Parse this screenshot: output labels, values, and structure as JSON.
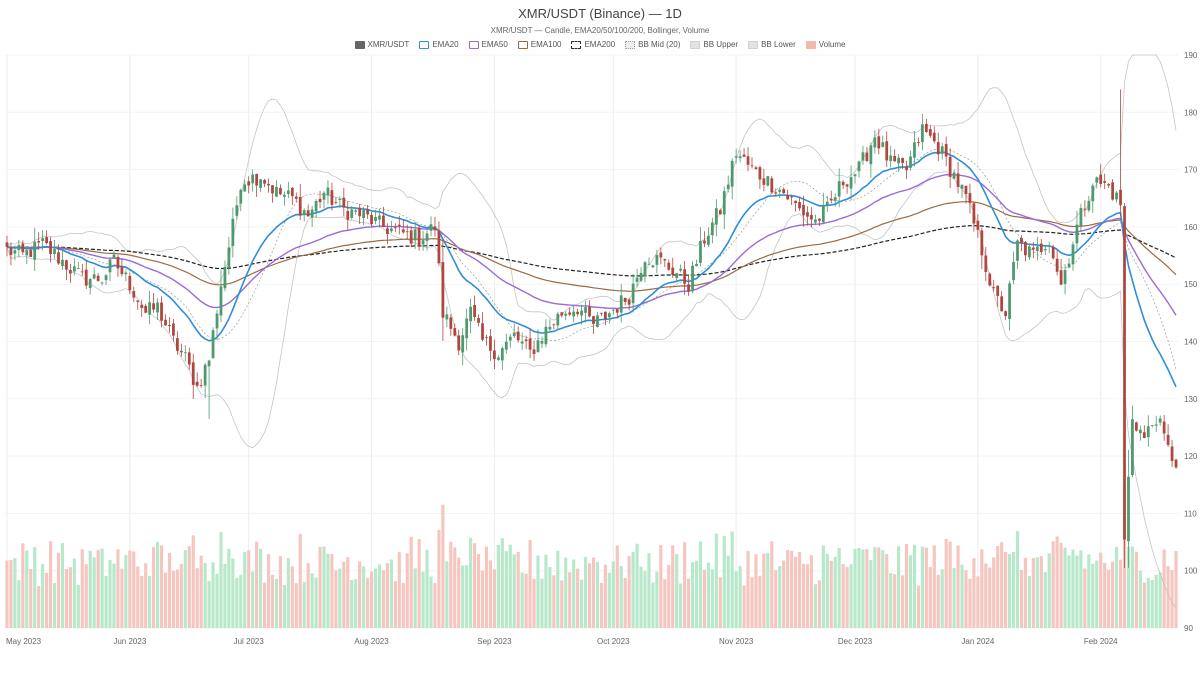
{
  "chart_data": {
    "type": "candlestick",
    "title": "XMR/USDT (Binance) — 1D",
    "subtitle": "XMR/USDT — Candle, EMA20/50/100/200, Bollinger, Volume",
    "ylim": [
      90,
      190
    ],
    "yticks": [
      90,
      100,
      110,
      120,
      130,
      140,
      150,
      160,
      170,
      180,
      190
    ],
    "x_start": "2023-05-01",
    "x_end": "2024-02-20",
    "xticks": [
      {
        "label": "May 2023",
        "date": "2023-05-01"
      },
      {
        "label": "Jun 2023",
        "date": "2023-06-01"
      },
      {
        "label": "Jul 2023",
        "date": "2023-07-01"
      },
      {
        "label": "Aug 2023",
        "date": "2023-08-01"
      },
      {
        "label": "Sep 2023",
        "date": "2023-09-01"
      },
      {
        "label": "Oct 2023",
        "date": "2023-10-01"
      },
      {
        "label": "Nov 2023",
        "date": "2023-11-01"
      },
      {
        "label": "Dec 2023",
        "date": "2023-12-01"
      },
      {
        "label": "Jan 2024",
        "date": "2024-01-01"
      },
      {
        "label": "Feb 2024",
        "date": "2024-02-01"
      }
    ],
    "grid": true,
    "legend_position": "top-center",
    "legend": [
      {
        "name": "XMR/USDT",
        "color": "#666666",
        "style": "fill"
      },
      {
        "name": "EMA20",
        "color": "#2e8fd8",
        "style": "line"
      },
      {
        "name": "EMA50",
        "color": "#9a6bd8",
        "style": "line"
      },
      {
        "name": "EMA100",
        "color": "#9b6a45",
        "style": "line"
      },
      {
        "name": "EMA200",
        "color": "#222222",
        "style": "dashed"
      },
      {
        "name": "BB Mid (20)",
        "color": "#999999",
        "style": "dotted"
      },
      {
        "name": "BB Upper",
        "color": "#bbbbbb",
        "style": "band"
      },
      {
        "name": "BB Lower",
        "color": "#bbbbbb",
        "style": "band"
      },
      {
        "name": "Volume",
        "color": "#f2b8ad",
        "style": "fill"
      }
    ],
    "colors": {
      "up": "#4e9a6e",
      "down": "#b0473f",
      "vol_up": "#b7e8c9",
      "vol_down": "#f5c6bf",
      "ema20": "#2e8fd8",
      "ema50": "#9a6bd8",
      "ema100": "#9b6a45",
      "ema200": "#222222",
      "bb": "#c4c4c4",
      "bbmid": "#999999"
    },
    "price_anchors": [
      [
        "2023-05-01",
        156
      ],
      [
        "2023-05-05",
        155
      ],
      [
        "2023-05-10",
        157
      ],
      [
        "2023-05-15",
        154
      ],
      [
        "2023-05-20",
        151
      ],
      [
        "2023-05-25",
        151
      ],
      [
        "2023-05-28",
        154
      ],
      [
        "2023-06-01",
        150
      ],
      [
        "2023-06-05",
        145
      ],
      [
        "2023-06-08",
        146
      ],
      [
        "2023-06-12",
        140
      ],
      [
        "2023-06-15",
        137
      ],
      [
        "2023-06-18",
        132
      ],
      [
        "2023-06-21",
        137
      ],
      [
        "2023-06-24",
        150
      ],
      [
        "2023-06-27",
        160
      ],
      [
        "2023-06-29",
        168
      ],
      [
        "2023-07-04",
        169
      ],
      [
        "2023-07-08",
        166
      ],
      [
        "2023-07-12",
        165
      ],
      [
        "2023-07-16",
        162
      ],
      [
        "2023-07-20",
        166
      ],
      [
        "2023-07-25",
        163
      ],
      [
        "2023-07-30",
        162
      ],
      [
        "2023-08-04",
        160
      ],
      [
        "2023-08-08",
        159
      ],
      [
        "2023-08-13",
        158
      ],
      [
        "2023-08-17",
        160
      ],
      [
        "2023-08-19",
        145
      ],
      [
        "2023-08-23",
        140
      ],
      [
        "2023-08-26",
        145
      ],
      [
        "2023-08-29",
        140
      ],
      [
        "2023-09-02",
        138
      ],
      [
        "2023-09-06",
        141
      ],
      [
        "2023-09-10",
        138
      ],
      [
        "2023-09-14",
        142
      ],
      [
        "2023-09-18",
        145
      ],
      [
        "2023-09-22",
        146
      ],
      [
        "2023-09-26",
        143
      ],
      [
        "2023-09-30",
        145
      ],
      [
        "2023-10-05",
        148
      ],
      [
        "2023-10-09",
        155
      ],
      [
        "2023-10-13",
        154
      ],
      [
        "2023-10-17",
        152
      ],
      [
        "2023-10-20",
        150
      ],
      [
        "2023-10-24",
        158
      ],
      [
        "2023-10-28",
        163
      ],
      [
        "2023-11-01",
        173
      ],
      [
        "2023-11-05",
        170
      ],
      [
        "2023-11-09",
        168
      ],
      [
        "2023-11-13",
        166
      ],
      [
        "2023-11-17",
        163
      ],
      [
        "2023-11-21",
        161
      ],
      [
        "2023-11-24",
        163
      ],
      [
        "2023-11-28",
        168
      ],
      [
        "2023-12-02",
        170
      ],
      [
        "2023-12-06",
        176
      ],
      [
        "2023-12-10",
        171
      ],
      [
        "2023-12-14",
        170
      ],
      [
        "2023-12-18",
        177
      ],
      [
        "2023-12-22",
        174
      ],
      [
        "2023-12-26",
        169
      ],
      [
        "2023-12-29",
        165
      ],
      [
        "2024-01-02",
        156
      ],
      [
        "2024-01-05",
        148
      ],
      [
        "2024-01-08",
        145
      ],
      [
        "2024-01-11",
        157
      ],
      [
        "2024-01-15",
        155
      ],
      [
        "2024-01-19",
        158
      ],
      [
        "2024-01-22",
        150
      ],
      [
        "2024-01-26",
        160
      ],
      [
        "2024-01-30",
        168
      ],
      [
        "2024-02-03",
        167
      ],
      [
        "2024-02-06",
        164
      ],
      [
        "2024-02-07",
        105
      ],
      [
        "2024-02-09",
        127
      ],
      [
        "2024-02-12",
        123
      ],
      [
        "2024-02-15",
        127
      ],
      [
        "2024-02-18",
        121
      ],
      [
        "2024-02-20",
        119
      ]
    ]
  }
}
